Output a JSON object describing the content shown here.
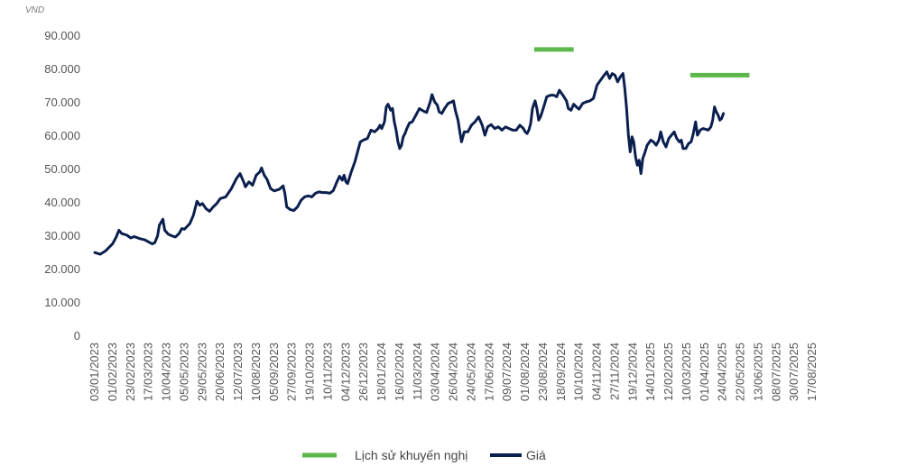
{
  "chart_data": {
    "type": "line",
    "ylabel": "VND",
    "ylim": [
      0,
      90000
    ],
    "y_ticks": [
      "0",
      "10.000",
      "20.000",
      "30.000",
      "40.000",
      "50.000",
      "60.000",
      "70.000",
      "80.000",
      "90.000"
    ],
    "categories": [
      "03/01/2023",
      "01/02/2023",
      "23/02/2023",
      "17/03/2023",
      "10/04/2023",
      "05/05/2023",
      "29/05/2023",
      "20/06/2023",
      "12/07/2023",
      "10/08/2023",
      "05/09/2023",
      "27/09/2023",
      "19/10/2023",
      "10/11/2023",
      "04/12/2023",
      "26/12/2023",
      "18/01/2024",
      "16/02/2024",
      "11/03/2024",
      "03/04/2024",
      "26/04/2024",
      "24/05/2024",
      "17/06/2024",
      "09/07/2024",
      "01/08/2024",
      "23/08/2024",
      "18/09/2024",
      "10/10/2024",
      "04/11/2024",
      "27/11/2024",
      "19/12/2024",
      "14/01/2025",
      "12/02/2025",
      "10/03/2025",
      "01/04/2025",
      "24/04/2025",
      "22/05/2025",
      "13/06/2025",
      "08/07/2025",
      "30/07/2025",
      "17/08/2025"
    ],
    "legend_position": "bottom",
    "grid": false,
    "series": [
      {
        "name": "Giá",
        "color": "#0b1f4f",
        "points": [
          [
            0,
            24800
          ],
          [
            0.3,
            24300
          ],
          [
            0.6,
            25300
          ],
          [
            1,
            27500
          ],
          [
            1.2,
            29500
          ],
          [
            1.35,
            31500
          ],
          [
            1.5,
            30500
          ],
          [
            1.8,
            30000
          ],
          [
            2,
            29200
          ],
          [
            2.2,
            29600
          ],
          [
            2.5,
            29000
          ],
          [
            2.8,
            28600
          ],
          [
            3,
            28000
          ],
          [
            3.2,
            27400
          ],
          [
            3.35,
            27800
          ],
          [
            3.5,
            29800
          ],
          [
            3.6,
            33000
          ],
          [
            3.8,
            34800
          ],
          [
            3.9,
            31500
          ],
          [
            4.1,
            30300
          ],
          [
            4.3,
            29800
          ],
          [
            4.5,
            29500
          ],
          [
            4.7,
            30500
          ],
          [
            4.85,
            32000
          ],
          [
            5,
            31800
          ],
          [
            5.3,
            33500
          ],
          [
            5.5,
            36000
          ],
          [
            5.7,
            40200
          ],
          [
            5.85,
            39000
          ],
          [
            6,
            39500
          ],
          [
            6.2,
            38000
          ],
          [
            6.4,
            37200
          ],
          [
            6.6,
            38500
          ],
          [
            6.8,
            39500
          ],
          [
            7,
            41000
          ],
          [
            7.3,
            41500
          ],
          [
            7.6,
            43800
          ],
          [
            7.9,
            47000
          ],
          [
            8.1,
            48500
          ],
          [
            8.3,
            46000
          ],
          [
            8.4,
            44500
          ],
          [
            8.6,
            46000
          ],
          [
            8.8,
            45000
          ],
          [
            9,
            48000
          ],
          [
            9.2,
            49000
          ],
          [
            9.3,
            50200
          ],
          [
            9.45,
            48000
          ],
          [
            9.6,
            46800
          ],
          [
            9.8,
            44000
          ],
          [
            10,
            43300
          ],
          [
            10.3,
            43800
          ],
          [
            10.5,
            44800
          ],
          [
            10.6,
            42500
          ],
          [
            10.7,
            38500
          ],
          [
            10.9,
            37700
          ],
          [
            11.1,
            37400
          ],
          [
            11.3,
            38500
          ],
          [
            11.5,
            40500
          ],
          [
            11.7,
            41500
          ],
          [
            11.9,
            41800
          ],
          [
            12.1,
            41500
          ],
          [
            12.3,
            42600
          ],
          [
            12.5,
            43000
          ],
          [
            12.7,
            42800
          ],
          [
            12.9,
            42800
          ],
          [
            13.1,
            42600
          ],
          [
            13.3,
            43400
          ],
          [
            13.5,
            46000
          ],
          [
            13.65,
            47700
          ],
          [
            13.8,
            46500
          ],
          [
            13.9,
            48000
          ],
          [
            14,
            46000
          ],
          [
            14.1,
            45500
          ],
          [
            14.3,
            49000
          ],
          [
            14.5,
            52000
          ],
          [
            14.7,
            56000
          ],
          [
            14.8,
            58000
          ],
          [
            15,
            58600
          ],
          [
            15.2,
            59000
          ],
          [
            15.4,
            61500
          ],
          [
            15.6,
            61000
          ],
          [
            15.8,
            62000
          ],
          [
            15.9,
            63000
          ],
          [
            16,
            62000
          ],
          [
            16.15,
            64000
          ],
          [
            16.25,
            68500
          ],
          [
            16.35,
            69300
          ],
          [
            16.5,
            67500
          ],
          [
            16.6,
            68000
          ],
          [
            16.7,
            64000
          ],
          [
            16.8,
            61500
          ],
          [
            16.9,
            58000
          ],
          [
            17,
            56000
          ],
          [
            17.1,
            57000
          ],
          [
            17.2,
            59500
          ],
          [
            17.3,
            60500
          ],
          [
            17.4,
            62000
          ],
          [
            17.55,
            63700
          ],
          [
            17.7,
            64000
          ],
          [
            17.85,
            65500
          ],
          [
            18,
            67000
          ],
          [
            18.1,
            68000
          ],
          [
            18.3,
            67300
          ],
          [
            18.5,
            66800
          ],
          [
            18.7,
            70000
          ],
          [
            18.8,
            72200
          ],
          [
            18.95,
            70000
          ],
          [
            19.1,
            69000
          ],
          [
            19.2,
            67000
          ],
          [
            19.35,
            66500
          ],
          [
            19.5,
            68000
          ],
          [
            19.7,
            69500
          ],
          [
            19.9,
            70000
          ],
          [
            20,
            70300
          ],
          [
            20.1,
            67500
          ],
          [
            20.25,
            64500
          ],
          [
            20.35,
            61000
          ],
          [
            20.45,
            58000
          ],
          [
            20.6,
            61000
          ],
          [
            20.8,
            61000
          ],
          [
            21,
            63000
          ],
          [
            21.2,
            64000
          ],
          [
            21.4,
            65500
          ],
          [
            21.6,
            63000
          ],
          [
            21.75,
            60000
          ],
          [
            21.9,
            62500
          ],
          [
            22.1,
            63200
          ],
          [
            22.3,
            62000
          ],
          [
            22.5,
            62500
          ],
          [
            22.7,
            61500
          ],
          [
            22.9,
            62500
          ],
          [
            23.1,
            62000
          ],
          [
            23.3,
            61500
          ],
          [
            23.5,
            61500
          ],
          [
            23.7,
            63000
          ],
          [
            23.9,
            62000
          ],
          [
            24,
            61000
          ],
          [
            24.1,
            60500
          ],
          [
            24.2,
            61500
          ],
          [
            24.3,
            63500
          ],
          [
            24.4,
            68000
          ],
          [
            24.55,
            70300
          ],
          [
            24.65,
            68000
          ],
          [
            24.75,
            64500
          ],
          [
            24.85,
            65500
          ],
          [
            25,
            68000
          ],
          [
            25.2,
            71500
          ],
          [
            25.4,
            72000
          ],
          [
            25.6,
            72000
          ],
          [
            25.75,
            71500
          ],
          [
            25.9,
            73500
          ],
          [
            26.1,
            72000
          ],
          [
            26.3,
            70300
          ],
          [
            26.4,
            68000
          ],
          [
            26.55,
            67500
          ],
          [
            26.7,
            69300
          ],
          [
            26.85,
            68500
          ],
          [
            27,
            67800
          ],
          [
            27.2,
            69500
          ],
          [
            27.4,
            70000
          ],
          [
            27.6,
            70300
          ],
          [
            27.8,
            71000
          ],
          [
            28,
            75000
          ],
          [
            28.2,
            76500
          ],
          [
            28.4,
            78000
          ],
          [
            28.55,
            79000
          ],
          [
            28.7,
            77000
          ],
          [
            28.85,
            78500
          ],
          [
            29,
            78000
          ],
          [
            29.15,
            76000
          ],
          [
            29.3,
            77500
          ],
          [
            29.45,
            78500
          ],
          [
            29.55,
            74000
          ],
          [
            29.65,
            68000
          ],
          [
            29.75,
            60000
          ],
          [
            29.85,
            55000
          ],
          [
            29.95,
            59500
          ],
          [
            30.05,
            58000
          ],
          [
            30.15,
            53500
          ],
          [
            30.25,
            51000
          ],
          [
            30.35,
            52500
          ],
          [
            30.45,
            48500
          ],
          [
            30.55,
            53000
          ],
          [
            30.65,
            54500
          ],
          [
            30.8,
            57000
          ],
          [
            31,
            58500
          ],
          [
            31.15,
            58000
          ],
          [
            31.3,
            57000
          ],
          [
            31.45,
            58500
          ],
          [
            31.55,
            61000
          ],
          [
            31.7,
            58000
          ],
          [
            31.85,
            56500
          ],
          [
            32,
            59000
          ],
          [
            32.15,
            60000
          ],
          [
            32.3,
            61000
          ],
          [
            32.45,
            59000
          ],
          [
            32.6,
            58000
          ],
          [
            32.7,
            58500
          ],
          [
            32.8,
            56000
          ],
          [
            32.95,
            56000
          ],
          [
            33.1,
            57500
          ],
          [
            33.25,
            58000
          ],
          [
            33.35,
            60000
          ],
          [
            33.5,
            64000
          ],
          [
            33.6,
            60000
          ],
          [
            33.75,
            61500
          ],
          [
            33.9,
            62000
          ],
          [
            34.05,
            61800
          ],
          [
            34.2,
            61500
          ],
          [
            34.35,
            62500
          ],
          [
            34.45,
            64500
          ],
          [
            34.55,
            68500
          ],
          [
            34.65,
            67000
          ],
          [
            34.75,
            66000
          ],
          [
            34.85,
            64500
          ],
          [
            34.95,
            65000
          ],
          [
            35.05,
            66500
          ]
        ]
      },
      {
        "name": "Lịch sử khuyến nghị",
        "color": "#5cb84a",
        "segments": [
          [
            [
              24.5,
              85700
            ],
            [
              26.7,
              85700
            ]
          ],
          [
            [
              33.2,
              78000
            ],
            [
              36.5,
              78000
            ]
          ]
        ]
      }
    ]
  }
}
